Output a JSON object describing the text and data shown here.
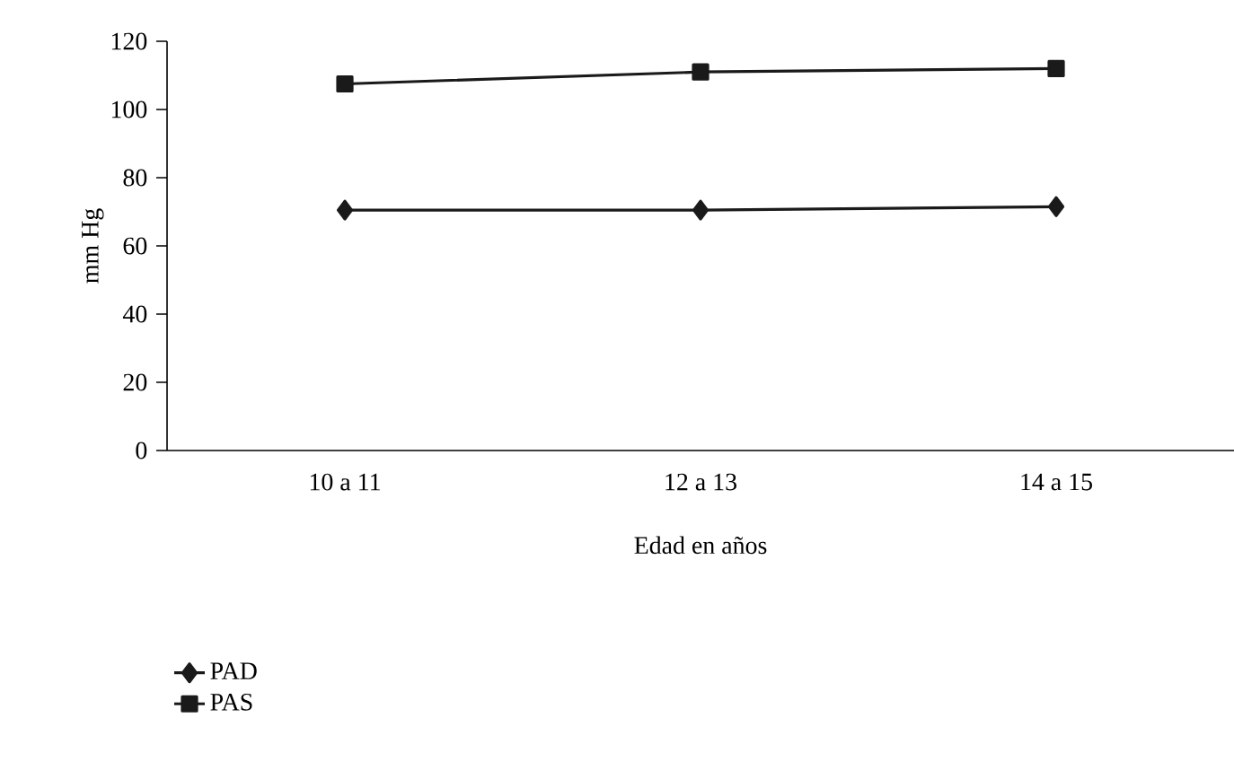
{
  "chart_data": {
    "type": "line",
    "xlabel": "Edad en años",
    "ylabel": "mm Hg",
    "categories": [
      "10 a 11",
      "12 a 13",
      "14 a 15"
    ],
    "series": [
      {
        "name": "PAD",
        "color": "#1a1a1a",
        "marker": "diamond",
        "values": [
          70.5,
          70.5,
          71.5
        ]
      },
      {
        "name": "PAS",
        "color": "#1a1a1a",
        "marker": "square",
        "values": [
          107.5,
          111,
          112
        ]
      }
    ],
    "ylim": [
      0,
      120
    ],
    "yticks": [
      0,
      20,
      40,
      60,
      80,
      100,
      120
    ],
    "grid": false,
    "legend": "bottom left",
    "line_style": "solid"
  }
}
